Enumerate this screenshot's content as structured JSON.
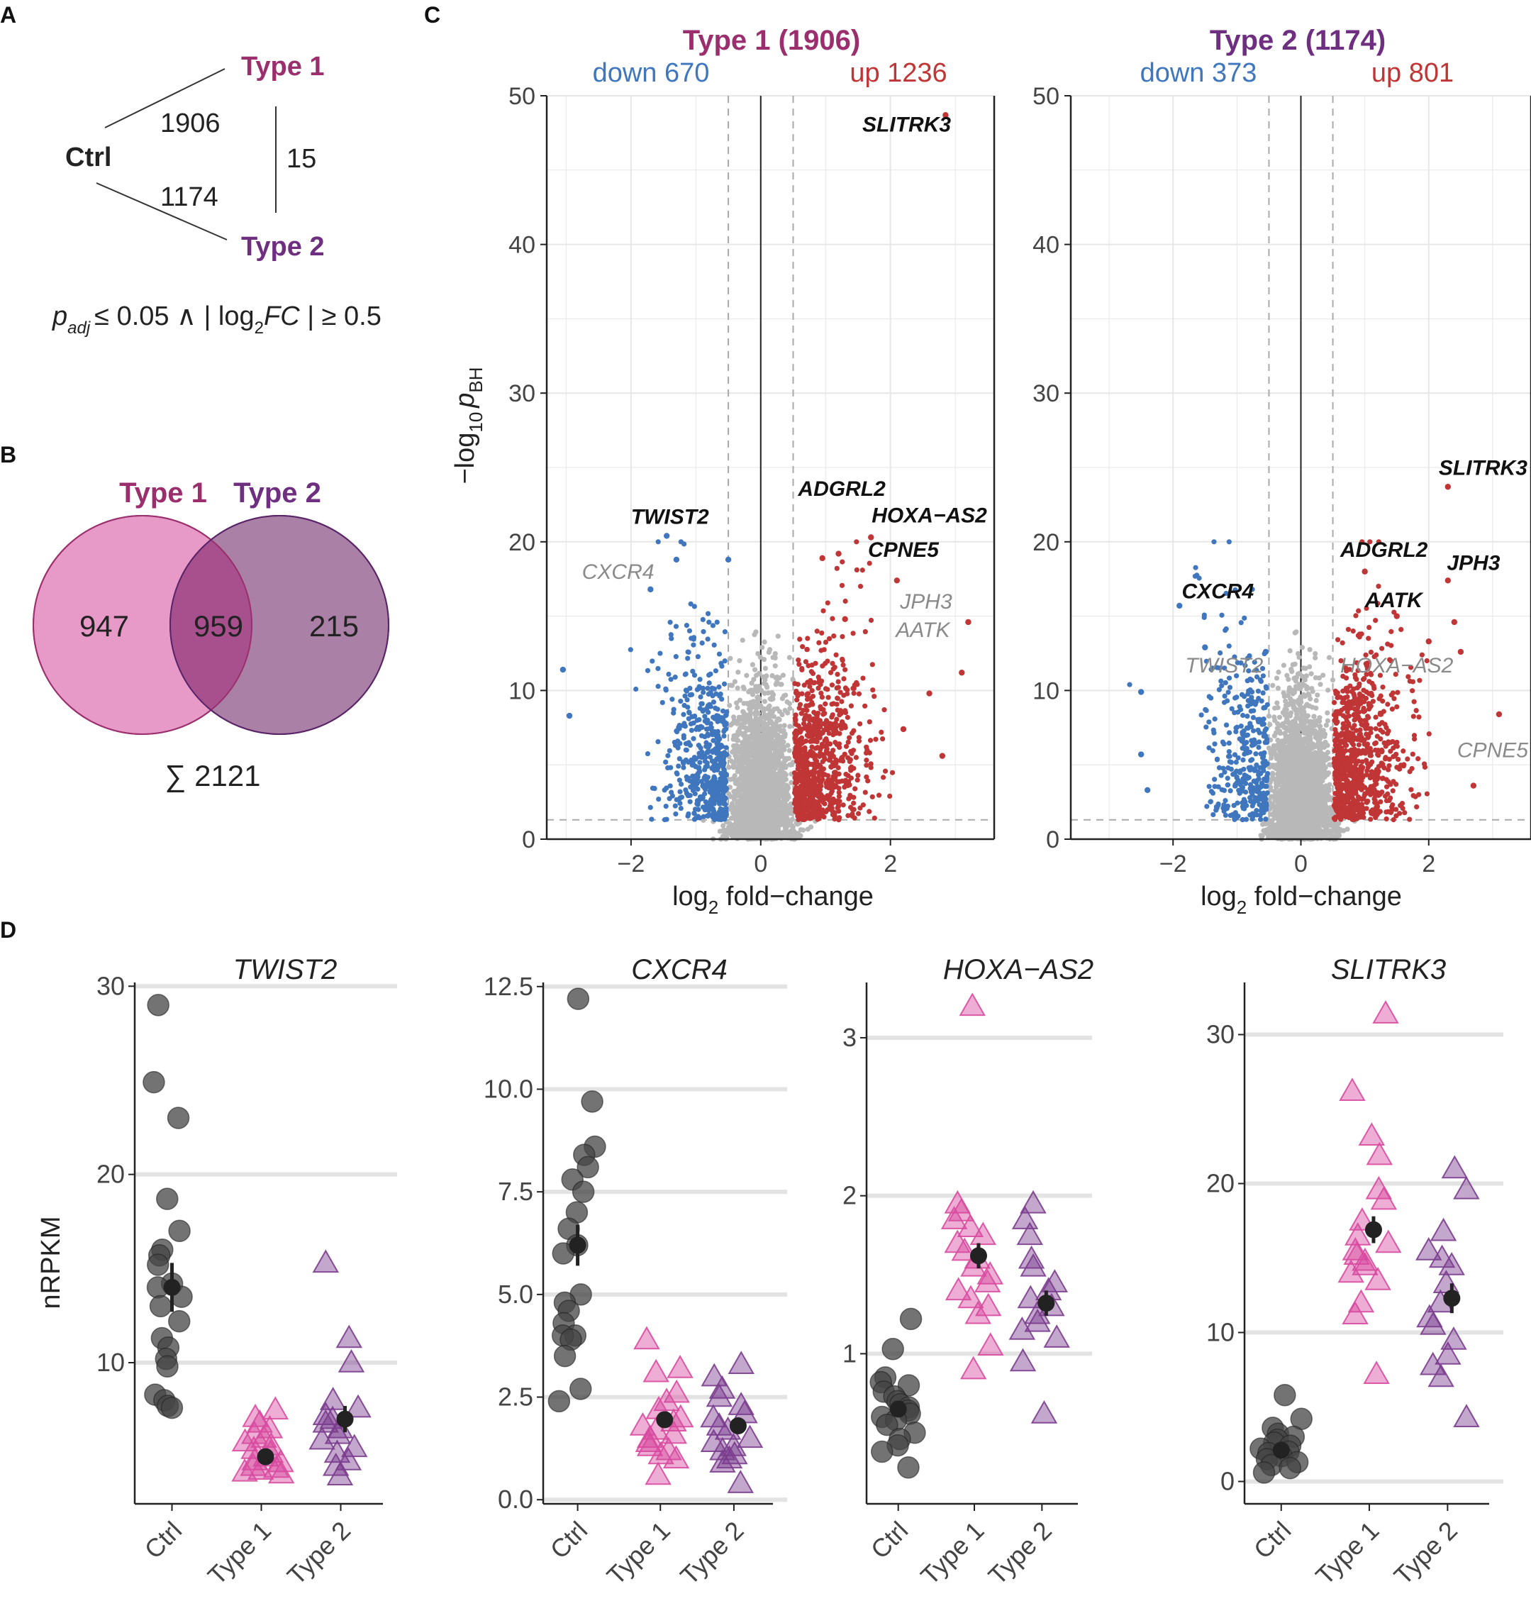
{
  "panels": {
    "A": {
      "letter": "A",
      "ctrl": "Ctrl",
      "type1": "Type 1",
      "type2": "Type 2",
      "n_ctrl_type1": "1906",
      "n_ctrl_type2": "1174",
      "n_type1_type2": "15",
      "criterion_p": "p",
      "criterion_adj": "adj",
      "criterion_mid": "≤ 0.05 ∧ | log",
      "criterion_sub2": "2",
      "criterion_fc": "FC",
      "criterion_end": " | ≥ 0.5"
    },
    "B": {
      "letter": "B",
      "label1": "Type 1",
      "label2": "Type 2",
      "only1": "947",
      "both": "959",
      "only2": "215",
      "total": "∑ 2121"
    },
    "C": {
      "letter": "C"
    },
    "D": {
      "letter": "D"
    }
  },
  "colors": {
    "type1": "#9b2f6e",
    "type2": "#6f2f80",
    "down": "#3f76bd",
    "up": "#c03535",
    "ns": "#b8b8b8",
    "ctrl_point": "#444444",
    "pink": "#d84aa0",
    "purple": "#7b3c8e",
    "venn1": "#e79ac7",
    "venn2": "#9c6a96",
    "overlap": "#a8508e"
  },
  "chart_data": [
    {
      "type": "scatter",
      "id": "volcano-type1",
      "title": "Type 1 (1906)",
      "down_label": "down 670",
      "up_label": "up 1236",
      "xlabel": "log",
      "xlabel_sub": "2",
      "xlabel_tail": " fold−change",
      "ylabel": "−log",
      "ylabel_sub": "10",
      "ylabel_p": "p",
      "ylabel_psub": "BH",
      "xlim": [
        -3.3,
        3.6
      ],
      "ylim": [
        0,
        50
      ],
      "xticks": [
        -2,
        0,
        2
      ],
      "xtick_labels": [
        "−2",
        "0",
        "2"
      ],
      "yticks": [
        0,
        10,
        20,
        30,
        40,
        50
      ],
      "ytick_labels": [
        "0",
        "10",
        "20",
        "30",
        "40",
        "50"
      ],
      "thresholds": {
        "fc": 0.5,
        "p": 1.3
      },
      "n_down": 670,
      "n_up": 1236,
      "highlight_points": [
        {
          "x": 2.85,
          "y": 48.7
        },
        {
          "x": -1.45,
          "y": 20.4
        },
        {
          "x": -0.5,
          "y": 18.8
        },
        {
          "x": -1.3,
          "y": 18.8
        },
        {
          "x": 1.2,
          "y": 19.2
        },
        {
          "x": 0.95,
          "y": 18.9
        },
        {
          "x": 1.7,
          "y": 20.3
        },
        {
          "x": -1.7,
          "y": 16.8
        },
        {
          "x": 2.1,
          "y": 17.4
        },
        {
          "x": 1.3,
          "y": 14.8
        },
        {
          "x": 3.2,
          "y": 14.6
        },
        {
          "x": -3.05,
          "y": 11.4
        },
        {
          "x": -2.95,
          "y": 8.3
        },
        {
          "x": 3.1,
          "y": 11.2
        },
        {
          "x": 2.8,
          "y": 5.6
        },
        {
          "x": 2.2,
          "y": 7.4
        },
        {
          "x": 2.6,
          "y": 9.8
        }
      ],
      "annotations": [
        {
          "text": "SLITRK3",
          "x": 2.25,
          "y": 47.6,
          "color": "#111111"
        },
        {
          "text": "TWIST2",
          "x": -1.4,
          "y": 21.2,
          "color": "#111111"
        },
        {
          "text": "CXCR4",
          "x": -2.2,
          "y": 17.5,
          "color": "#8a8a8a"
        },
        {
          "text": "ADGRL2",
          "x": 1.25,
          "y": 23.1,
          "color": "#111111"
        },
        {
          "text": "HOXA−AS2",
          "x": 2.6,
          "y": 21.3,
          "color": "#111111"
        },
        {
          "text": "CPNE5",
          "x": 2.2,
          "y": 19.0,
          "color": "#111111"
        },
        {
          "text": "JPH3",
          "x": 2.55,
          "y": 15.5,
          "color": "#8a8a8a"
        },
        {
          "text": "AATK",
          "x": 2.5,
          "y": 13.6,
          "color": "#8a8a8a"
        }
      ]
    },
    {
      "type": "scatter",
      "id": "volcano-type2",
      "title": "Type 2 (1174)",
      "down_label": "down 373",
      "up_label": "up 801",
      "xlabel": "log",
      "xlabel_sub": "2",
      "xlabel_tail": " fold−change",
      "xlim": [
        -3.6,
        3.6
      ],
      "ylim": [
        0,
        50
      ],
      "xticks": [
        -2,
        0,
        2
      ],
      "xtick_labels": [
        "−2",
        "0",
        "2"
      ],
      "yticks": [
        0,
        10,
        20,
        30,
        40,
        50
      ],
      "ytick_labels": [
        "0",
        "10",
        "20",
        "30",
        "40",
        "50"
      ],
      "thresholds": {
        "fc": 0.5,
        "p": 1.3
      },
      "n_down": 373,
      "n_up": 801,
      "highlight_points": [
        {
          "x": 2.3,
          "y": 23.7
        },
        {
          "x": 1.0,
          "y": 18.0
        },
        {
          "x": 2.3,
          "y": 17.4
        },
        {
          "x": 1.5,
          "y": 15.0
        },
        {
          "x": -1.9,
          "y": 15.7
        },
        {
          "x": -1.5,
          "y": 12.9
        },
        {
          "x": 2.4,
          "y": 14.6
        },
        {
          "x": 2.0,
          "y": 13.3
        },
        {
          "x": 3.1,
          "y": 8.4
        },
        {
          "x": -2.5,
          "y": 9.9
        },
        {
          "x": -2.5,
          "y": 5.7
        },
        {
          "x": -2.4,
          "y": 3.3
        },
        {
          "x": -0.55,
          "y": 12.6
        },
        {
          "x": 2.7,
          "y": 3.6
        },
        {
          "x": 2.5,
          "y": 12.6
        }
      ],
      "annotations": [
        {
          "text": "SLITRK3",
          "x": 2.85,
          "y": 24.5,
          "color": "#111111"
        },
        {
          "text": "ADGRL2",
          "x": 1.3,
          "y": 19.0,
          "color": "#111111"
        },
        {
          "text": "JPH3",
          "x": 2.7,
          "y": 18.1,
          "color": "#111111"
        },
        {
          "text": "AATK",
          "x": 1.45,
          "y": 15.6,
          "color": "#111111"
        },
        {
          "text": "CXCR4",
          "x": -1.3,
          "y": 16.2,
          "color": "#111111"
        },
        {
          "text": "TWIST2",
          "x": -1.2,
          "y": 11.2,
          "color": "#8a8a8a"
        },
        {
          "text": "HOXA−AS2",
          "x": 1.5,
          "y": 11.2,
          "color": "#8a8a8a"
        },
        {
          "text": "CPNE5",
          "x": 3.0,
          "y": 5.5,
          "color": "#8a8a8a"
        }
      ]
    },
    {
      "type": "scatter",
      "id": "strip-TWIST2",
      "title": "TWIST2",
      "ylabel": "nRPKM",
      "categories": [
        "Ctrl",
        "Type 1",
        "Type 2"
      ],
      "ylim": [
        2.5,
        30.2
      ],
      "yticks": [
        10,
        20,
        30
      ],
      "ytick_labels": [
        "10",
        "20",
        "30"
      ],
      "groups": [
        {
          "name": "Ctrl",
          "values": [
            29.0,
            24.9,
            23.0,
            18.7,
            17.0,
            16.0,
            15.7,
            15.2,
            14.2,
            14.0,
            13.5,
            13.0,
            12.2,
            11.3,
            10.8,
            10.2,
            9.8,
            8.3,
            8.0,
            7.7,
            7.6
          ],
          "mean": 14.0,
          "se": 1.3
        },
        {
          "name": "Type 1",
          "values": [
            7.5,
            7.1,
            6.8,
            6.5,
            6.2,
            6.0,
            5.8,
            5.6,
            5.4,
            5.2,
            5.0,
            4.8,
            4.7,
            4.5,
            4.4,
            4.3,
            4.2,
            4.1
          ],
          "mean": 5.0,
          "se": 0.3
        },
        {
          "name": "Type 2",
          "values": [
            15.3,
            11.3,
            10.0,
            8.0,
            7.6,
            7.2,
            7.0,
            6.8,
            6.5,
            6.2,
            5.9,
            5.5,
            5.2,
            4.8,
            4.5,
            4.0
          ],
          "mean": 7.0,
          "se": 0.7
        }
      ]
    },
    {
      "type": "scatter",
      "id": "strip-CXCR4",
      "title": "CXCR4",
      "categories": [
        "Ctrl",
        "Type 1",
        "Type 2"
      ],
      "ylim": [
        -0.1,
        12.6
      ],
      "yticks": [
        0,
        2.5,
        5,
        7.5,
        10,
        12.5
      ],
      "ytick_labels": [
        "0.0",
        "2.5",
        "5.0",
        "7.5",
        "10.0",
        "12.5"
      ],
      "groups": [
        {
          "name": "Ctrl",
          "values": [
            12.2,
            9.7,
            8.6,
            8.4,
            8.1,
            7.8,
            7.5,
            7.0,
            6.6,
            6.2,
            6.0,
            5.0,
            4.8,
            4.6,
            4.3,
            4.0,
            4.0,
            3.9,
            3.5,
            2.7,
            2.4
          ],
          "mean": 6.2,
          "se": 0.5
        },
        {
          "name": "Type 1",
          "values": [
            3.9,
            3.2,
            3.1,
            2.6,
            2.4,
            2.2,
            2.0,
            1.9,
            1.8,
            1.7,
            1.6,
            1.5,
            1.4,
            1.3,
            1.2,
            1.1,
            1.0,
            0.6
          ],
          "mean": 1.95,
          "se": 0.2
        },
        {
          "name": "Type 2",
          "values": [
            3.3,
            3.0,
            2.7,
            2.5,
            2.3,
            2.1,
            2.0,
            1.8,
            1.7,
            1.5,
            1.4,
            1.3,
            1.2,
            1.1,
            1.0,
            0.9,
            0.4
          ],
          "mean": 1.8,
          "se": 0.2
        }
      ]
    },
    {
      "type": "scatter",
      "id": "strip-HOXA-AS2",
      "title": "HOXA−AS2",
      "categories": [
        "Ctrl",
        "Type 1",
        "Type 2"
      ],
      "ylim": [
        0.05,
        3.35
      ],
      "yticks": [
        1,
        2,
        3
      ],
      "ytick_labels": [
        "1",
        "2",
        "3"
      ],
      "groups": [
        {
          "name": "Ctrl",
          "values": [
            1.22,
            1.03,
            0.85,
            0.82,
            0.8,
            0.76,
            0.73,
            0.7,
            0.68,
            0.66,
            0.64,
            0.62,
            0.6,
            0.58,
            0.55,
            0.5,
            0.46,
            0.42,
            0.38,
            0.28
          ],
          "mean": 0.65,
          "se": 0.05
        },
        {
          "name": "Type 1",
          "values": [
            3.2,
            1.95,
            1.9,
            1.85,
            1.8,
            1.75,
            1.7,
            1.65,
            1.6,
            1.55,
            1.5,
            1.45,
            1.4,
            1.35,
            1.3,
            1.25,
            1.05,
            0.9
          ],
          "mean": 1.62,
          "se": 0.08
        },
        {
          "name": "Type 2",
          "values": [
            1.95,
            1.85,
            1.75,
            1.6,
            1.55,
            1.45,
            1.4,
            1.35,
            1.3,
            1.25,
            1.2,
            1.15,
            1.1,
            0.95,
            0.62
          ],
          "mean": 1.32,
          "se": 0.08
        }
      ]
    },
    {
      "type": "scatter",
      "id": "strip-SLITRK3",
      "title": "SLITRK3",
      "categories": [
        "Ctrl",
        "Type 1",
        "Type 2"
      ],
      "ylim": [
        -1.5,
        33.5
      ],
      "yticks": [
        0,
        10,
        20,
        30
      ],
      "ytick_labels": [
        "0",
        "10",
        "20",
        "30"
      ],
      "groups": [
        {
          "name": "Ctrl",
          "values": [
            5.8,
            4.2,
            3.6,
            3.2,
            3.0,
            2.8,
            2.6,
            2.4,
            2.2,
            2.0,
            1.9,
            1.7,
            1.5,
            1.3,
            1.1,
            0.9,
            0.6
          ],
          "mean": 2.1,
          "se": 0.3
        },
        {
          "name": "Type 1",
          "values": [
            31.4,
            26.2,
            23.2,
            21.9,
            19.6,
            18.9,
            17.5,
            16.5,
            16.0,
            15.5,
            15.2,
            14.8,
            14.5,
            14.0,
            13.5,
            12.0,
            11.2,
            7.2
          ],
          "mean": 16.9,
          "se": 0.9
        },
        {
          "name": "Type 2",
          "values": [
            21.0,
            19.6,
            16.8,
            15.5,
            15.0,
            14.5,
            13.3,
            12.0,
            11.0,
            10.5,
            9.5,
            8.5,
            7.8,
            7.0,
            4.3
          ],
          "mean": 12.3,
          "se": 1.0
        }
      ]
    }
  ]
}
